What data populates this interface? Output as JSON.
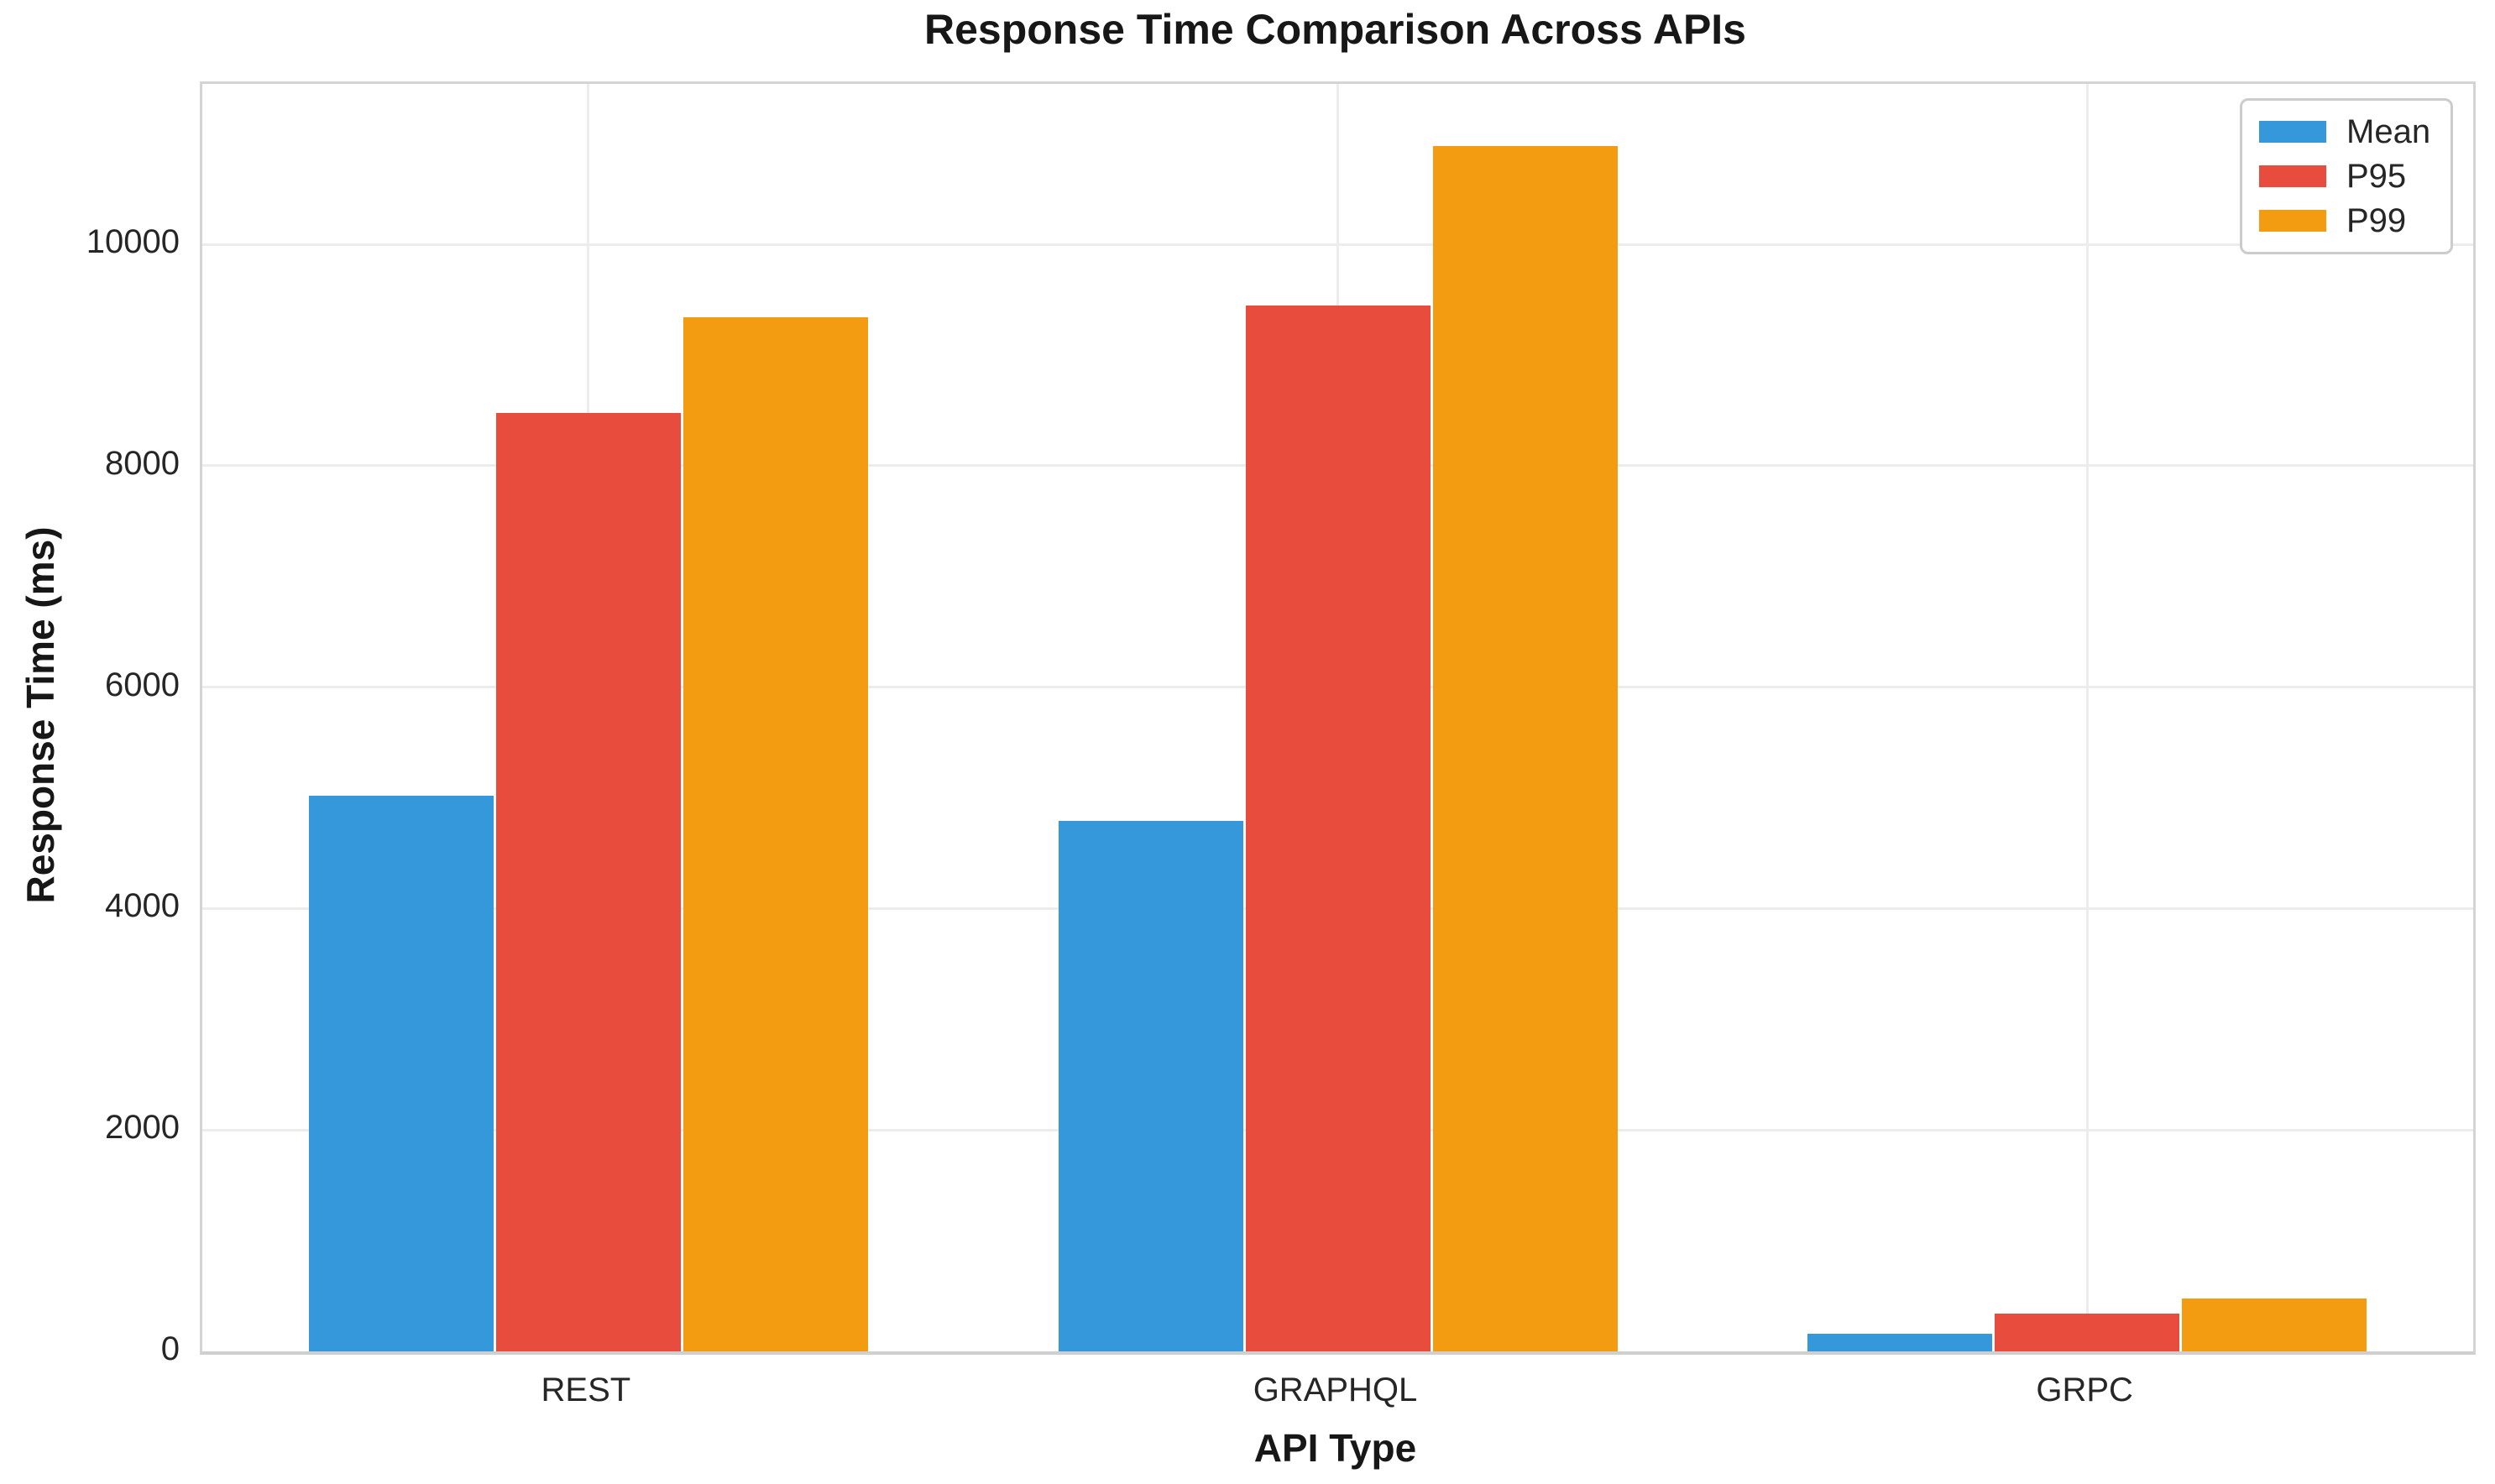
{
  "chart_data": {
    "type": "bar",
    "title": "Response Time Comparison Across APIs",
    "xlabel": "API Type",
    "ylabel": "Response Time (ms)",
    "categories": [
      "REST",
      "GRAPHQL",
      "GRPC"
    ],
    "series": [
      {
        "name": "Mean",
        "color": "#3498db",
        "values": [
          5020,
          4790,
          160
        ]
      },
      {
        "name": "P95",
        "color": "#e74c3c",
        "values": [
          8480,
          9450,
          340
        ]
      },
      {
        "name": "P99",
        "color": "#f39c12",
        "values": [
          9340,
          10890,
          480
        ]
      }
    ],
    "ylim": [
      0,
      11450
    ],
    "yticks": [
      0,
      2000,
      4000,
      6000,
      8000,
      10000
    ],
    "grid": true,
    "legend_position": "upper right",
    "background_color": "#ffffff",
    "grid_color": "#ececec",
    "spine_color": "#d4d4d4",
    "text_color": "#262626"
  }
}
